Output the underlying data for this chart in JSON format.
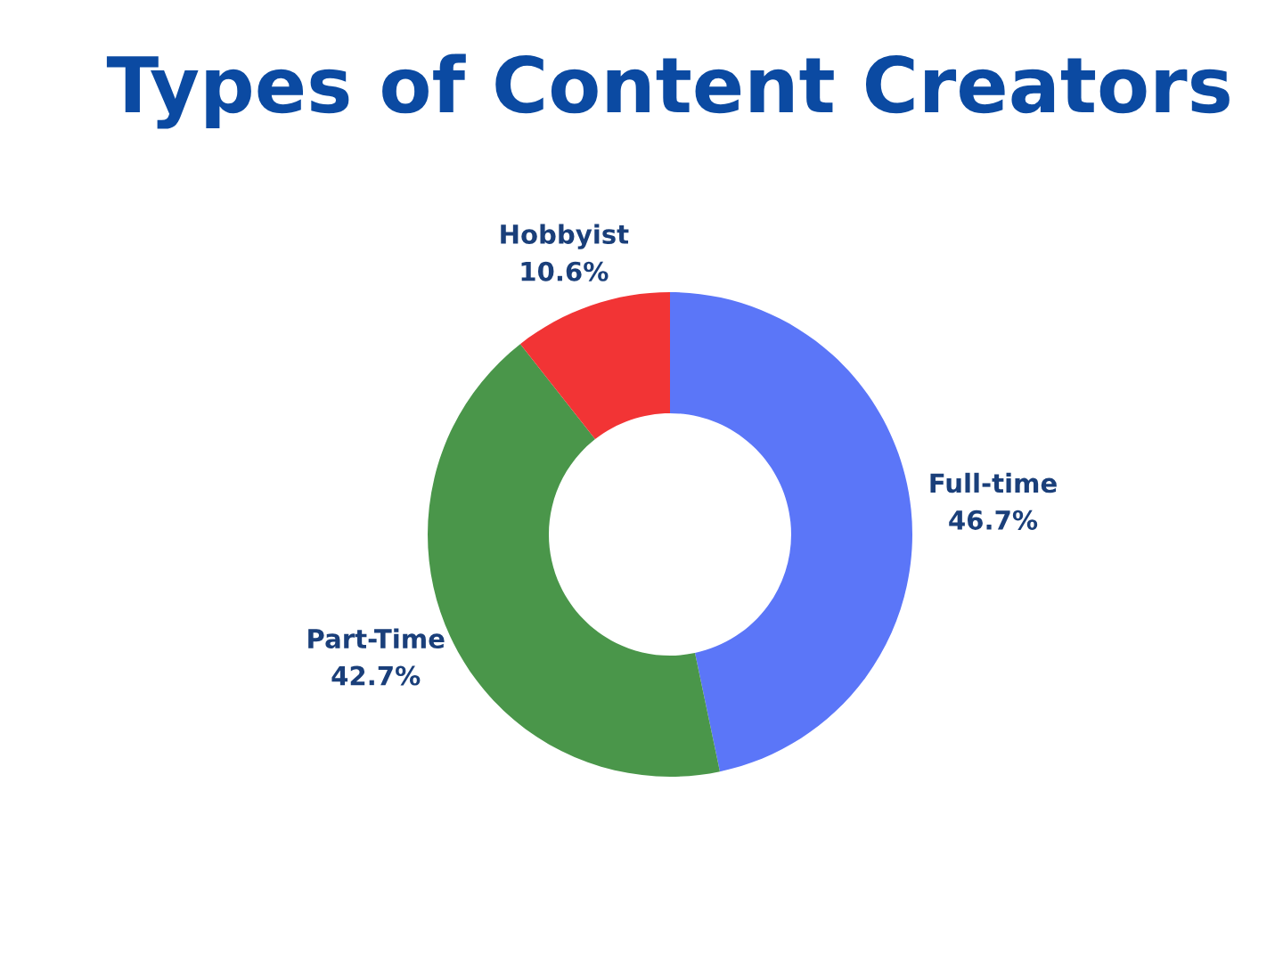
{
  "chart_data": {
    "type": "donut",
    "title": "Types of Content Creators",
    "categories": [
      "Full-time",
      "Part-Time",
      "Hobbyist"
    ],
    "values": [
      46.7,
      42.7,
      10.6
    ],
    "value_labels": [
      "46.7%",
      "42.7%",
      "10.6%"
    ],
    "colors": [
      "#5b76f8",
      "#4a964a",
      "#f23435"
    ],
    "legend": false
  }
}
